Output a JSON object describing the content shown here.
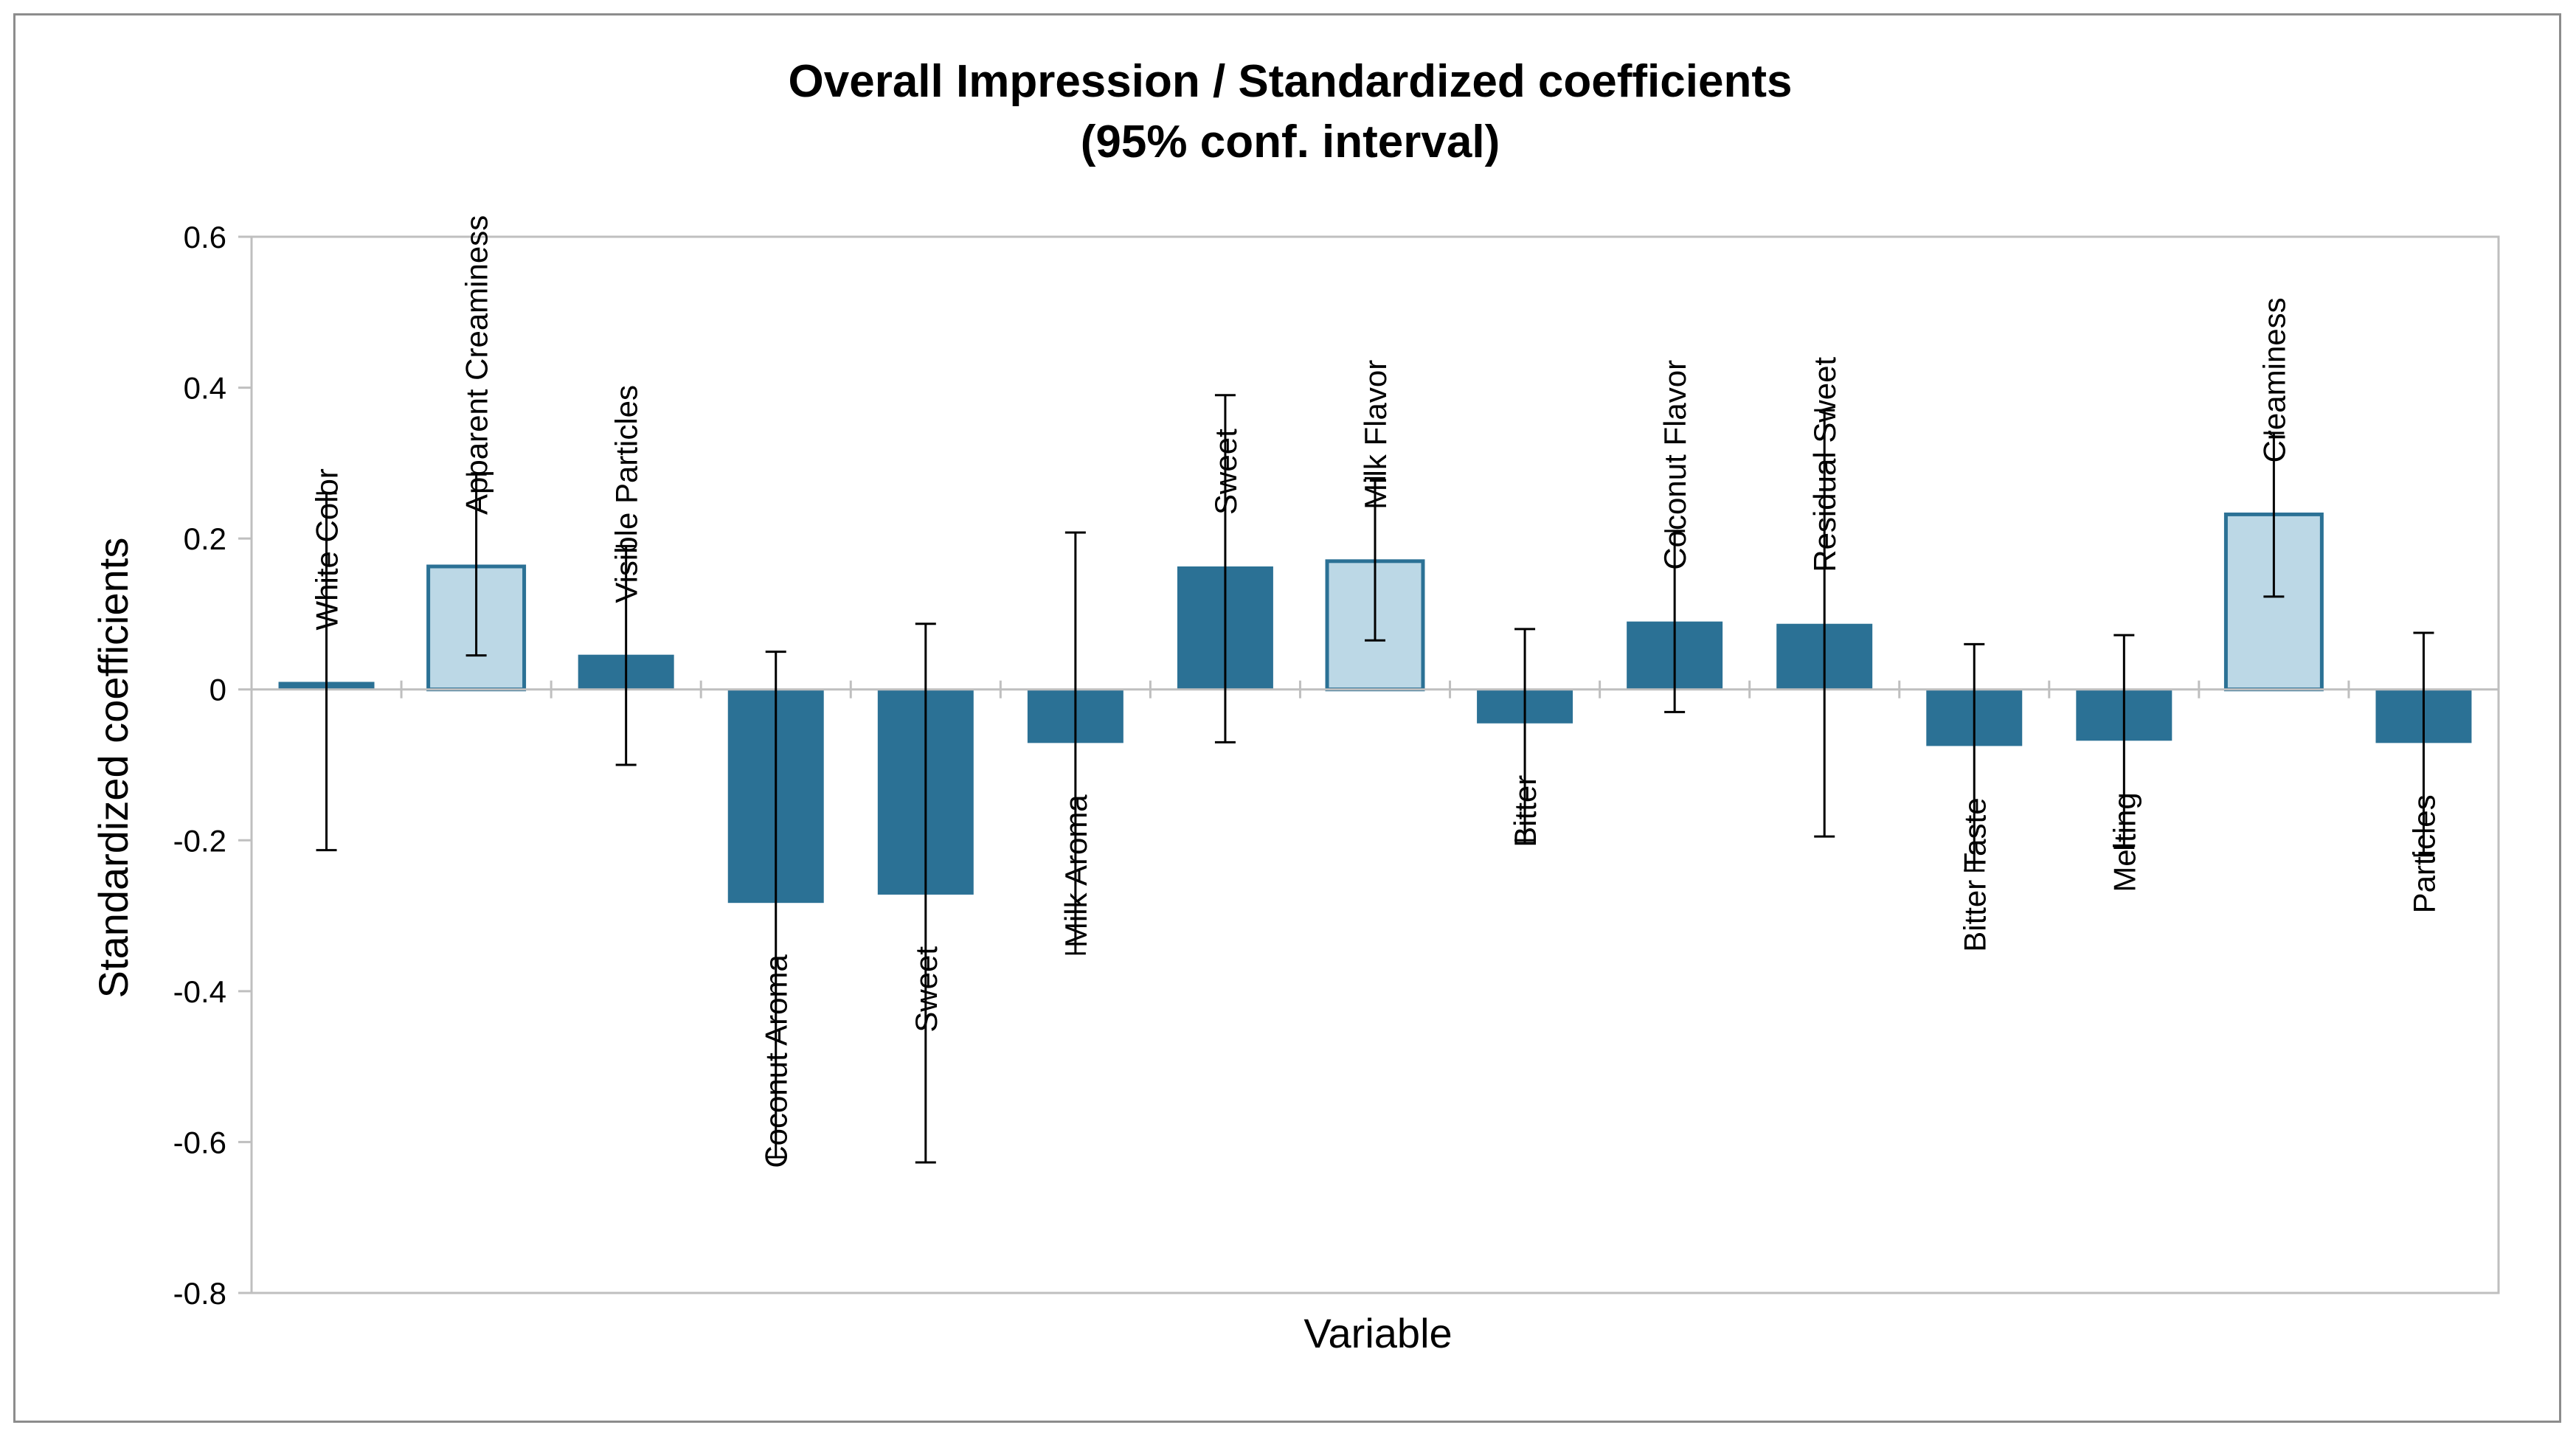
{
  "chart_data": {
    "type": "bar",
    "title": [
      "Overall Impression / Standardized coefficients",
      "(95% conf. interval)"
    ],
    "xlabel": "Variable",
    "ylabel": "Standardized coefficients",
    "ylim": [
      -0.8,
      0.6
    ],
    "yticks": [
      0.6,
      0.4,
      0.2,
      0,
      -0.2,
      -0.4,
      -0.6,
      -0.8
    ],
    "ytick_labels": [
      "0.6",
      "0.4",
      "0.2",
      "0",
      "-0.2",
      "-0.4",
      "-0.6",
      "-0.8"
    ],
    "grid": false,
    "colors": {
      "dark": "#2b7195",
      "light": "#bcd8e6",
      "light_border": "#2b7195",
      "error": "#000000",
      "axis": "#bfbfbf"
    },
    "categories": [
      "White Color",
      "Apparent Creaminess",
      "Visible Particles",
      "Coconut Aroma",
      "Sweet",
      "Milk Aroma",
      "Sweet",
      "Milk Flavor",
      "Bitter",
      "Coconut Flavor",
      "Residual Sweet",
      "Bitter Taste",
      "Melting",
      "Creaminess",
      "Particles"
    ],
    "values": [
      0.01,
      0.163,
      0.046,
      -0.283,
      -0.272,
      -0.071,
      0.163,
      0.17,
      -0.045,
      0.09,
      0.087,
      -0.075,
      -0.068,
      0.232,
      -0.071
    ],
    "ci_low": [
      -0.213,
      0.045,
      -0.1,
      -0.62,
      -0.627,
      -0.35,
      -0.07,
      0.065,
      -0.2,
      -0.03,
      -0.195,
      -0.24,
      -0.21,
      0.123,
      -0.22
    ],
    "ci_high": [
      0.26,
      0.285,
      0.19,
      0.05,
      0.087,
      0.208,
      0.39,
      0.28,
      0.08,
      0.21,
      0.37,
      0.06,
      0.072,
      0.34,
      0.075
    ],
    "highlight": [
      false,
      true,
      false,
      false,
      false,
      false,
      false,
      true,
      false,
      false,
      false,
      false,
      false,
      true,
      false
    ]
  }
}
